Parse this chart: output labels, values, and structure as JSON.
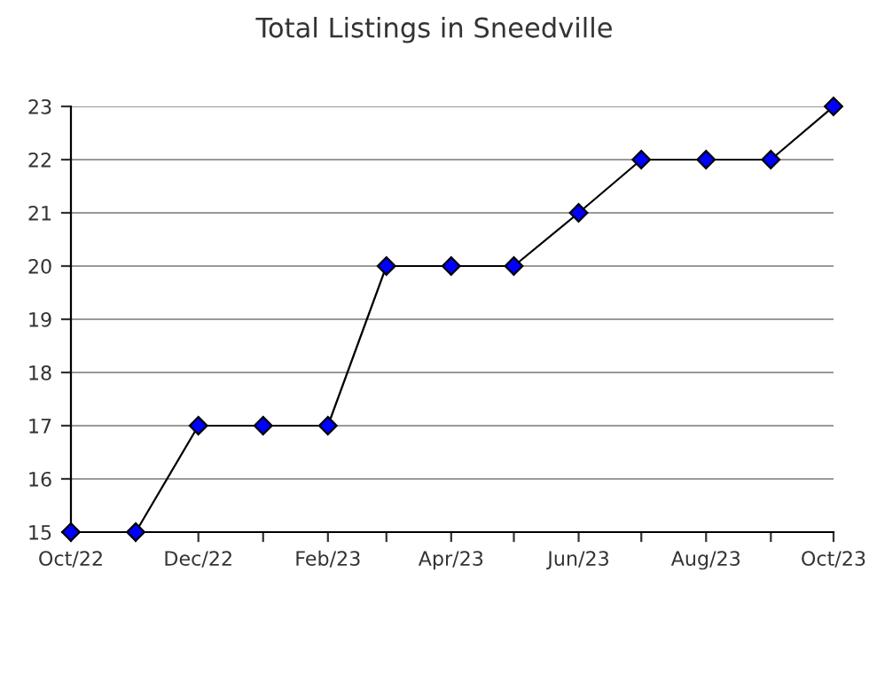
{
  "chart_data": {
    "type": "line",
    "title": "Total Listings in Sneedville",
    "x": [
      "2022-10",
      "2022-11",
      "2022-12",
      "2023-01",
      "2023-02",
      "2023-03",
      "2023-04",
      "2023-05",
      "2023-06",
      "2023-07",
      "2023-08",
      "2023-09",
      "2023-10"
    ],
    "series": [
      {
        "color": "#0000ff",
        "values": [
          15,
          15,
          17,
          17,
          17,
          20,
          20,
          20,
          21,
          22,
          22,
          22,
          23
        ]
      }
    ],
    "xlim": [
      "2022-10",
      "2023-10"
    ],
    "xticks": [
      {
        "value": "2022-10",
        "label": "Oct/22"
      },
      {
        "value": "2022-11",
        "label": null
      },
      {
        "value": "2022-12",
        "label": "Dec/22"
      },
      {
        "value": "2023-01",
        "label": null
      },
      {
        "value": "2023-02",
        "label": "Feb/23"
      },
      {
        "value": "2023-03",
        "label": null
      },
      {
        "value": "2023-04",
        "label": "Apr/23"
      },
      {
        "value": "2023-05",
        "label": null
      },
      {
        "value": "2023-06",
        "label": "Jun/23"
      },
      {
        "value": "2023-07",
        "label": null
      },
      {
        "value": "2023-08",
        "label": "Aug/23"
      },
      {
        "value": "2023-09",
        "label": null
      },
      {
        "value": "2023-10",
        "label": "Oct/23"
      }
    ],
    "ylim": [
      15,
      23
    ],
    "yticks": [
      15,
      16,
      17,
      18,
      19,
      20,
      21,
      22,
      23
    ],
    "grid": "y",
    "marker": "diamond",
    "line_style": "solid"
  }
}
